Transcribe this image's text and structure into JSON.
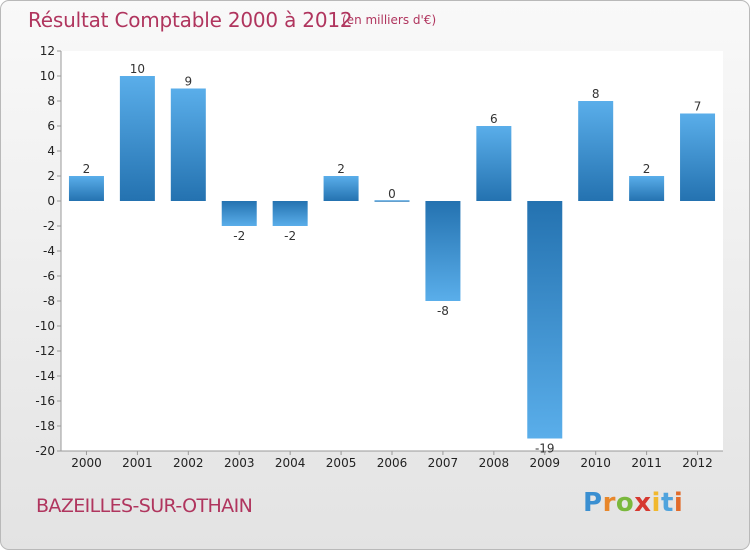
{
  "header": {
    "title": "Résultat Comptable 2000 à 2012",
    "subtitle": "(en milliers d'€)"
  },
  "footer": {
    "commune": "BAZEILLES-SUR-OTHAIN",
    "logo_letters": [
      "P",
      "r",
      "o",
      "x",
      "i",
      "t",
      "i"
    ],
    "logo_colors": [
      "#3a8fd1",
      "#e8872b",
      "#7ab83d",
      "#d6382f",
      "#f1b82d",
      "#4fa3dd",
      "#e26b2a"
    ]
  },
  "chart_data": {
    "type": "bar",
    "title": "Résultat Comptable 2000 à 2012",
    "subtitle": "(en milliers d'€)",
    "xlabel": "",
    "ylabel": "",
    "categories": [
      "2000",
      "2001",
      "2002",
      "2003",
      "2004",
      "2005",
      "2006",
      "2007",
      "2008",
      "2009",
      "2010",
      "2011",
      "2012"
    ],
    "values": [
      2,
      10,
      9,
      -2,
      -2,
      2,
      0,
      -8,
      6,
      -19,
      8,
      2,
      7
    ],
    "value_labels": [
      "2",
      "10",
      "9",
      "-2",
      "-2",
      "2",
      "0",
      "-8",
      "6",
      "-19",
      "8",
      "2",
      "7"
    ],
    "ylim": [
      -20,
      12
    ],
    "yticks": [
      12,
      10,
      8,
      6,
      4,
      2,
      0,
      -2,
      -4,
      -6,
      -8,
      -10,
      -12,
      -14,
      -16,
      -18,
      -20
    ],
    "grid": false,
    "colors": {
      "bar_dark": "#2472b0",
      "bar_light": "#5aaeea",
      "axis": "#9a9a9a",
      "plot_bg": "#ffffff"
    }
  }
}
